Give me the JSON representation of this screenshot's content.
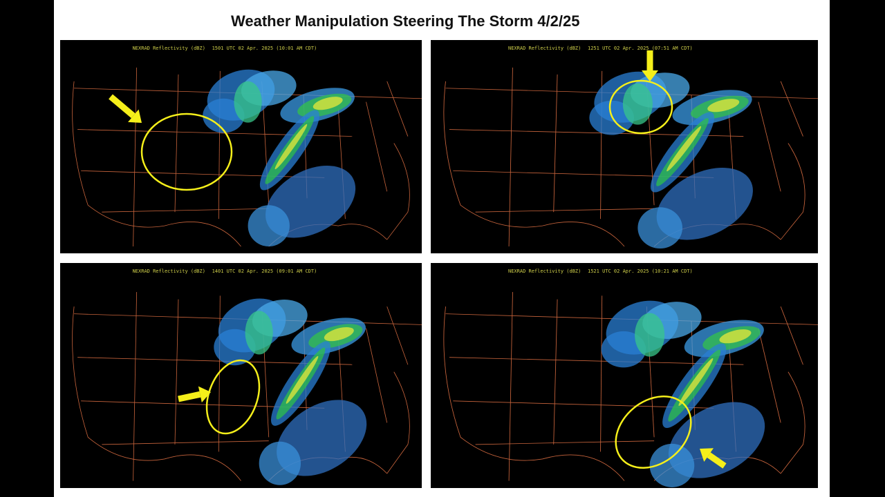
{
  "title": "Weather Manipulation Steering The Storm 4/2/25",
  "panels": [
    {
      "product": "NEXRAD Reflectivity (dBZ)",
      "time": "1501 UTC 02 Apr. 2025 (10:01 AM CDT)"
    },
    {
      "product": "NEXRAD Reflectivity (dBZ)",
      "time": "1251 UTC 02 Apr. 2025 (07:51 AM CDT)"
    },
    {
      "product": "NEXRAD Reflectivity (dBZ)",
      "time": "1401 UTC 02 Apr. 2025 (09:01 AM CDT)"
    },
    {
      "product": "NEXRAD Reflectivity (dBZ)",
      "time": "1521 UTC 02 Apr. 2025 (10:21 AM CDT)"
    }
  ]
}
